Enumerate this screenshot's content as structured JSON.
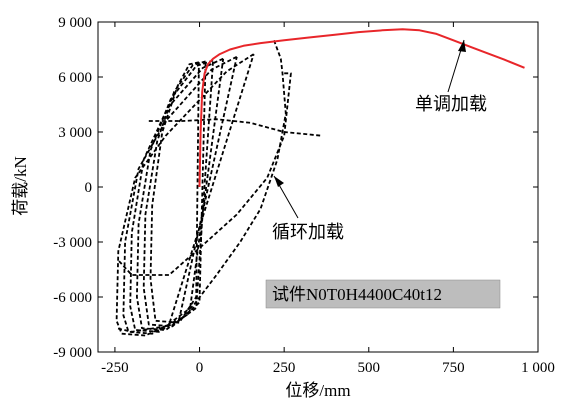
{
  "chart_data": {
    "type": "line",
    "xlabel": "位移/mm",
    "ylabel": "荷载/kN",
    "xlim": [
      -300,
      1000
    ],
    "ylim": [
      -9000,
      9000
    ],
    "xticks": [
      -250,
      0,
      250,
      500,
      750,
      1000
    ],
    "yticks": [
      -9000,
      -6000,
      -3000,
      0,
      3000,
      6000,
      9000
    ],
    "xtick_labels": [
      "-250",
      "0",
      "250",
      "500",
      "750",
      "1 000"
    ],
    "ytick_labels": [
      "-9 000",
      "-6 000",
      "-3 000",
      "0",
      "3 000",
      "6 000",
      "9 000"
    ],
    "grid": false,
    "annotations": {
      "monotonic": "单调加载",
      "cyclic": "循环加载"
    },
    "specimen_label": "试件N0T0H4400C40t12",
    "colors": {
      "monotonic": "#e8262a",
      "cyclic": "#000000",
      "label_box": "#bdbdbd"
    },
    "series": [
      {
        "name": "单调加载",
        "style": "solid",
        "x": [
          0,
          3,
          8,
          15,
          25,
          40,
          60,
          90,
          130,
          180,
          250,
          320,
          400,
          470,
          540,
          600,
          650,
          700,
          750,
          800,
          850,
          900,
          960
        ],
        "y": [
          0,
          3000,
          5200,
          6200,
          6700,
          7000,
          7250,
          7500,
          7700,
          7850,
          8000,
          8150,
          8300,
          8450,
          8550,
          8600,
          8550,
          8350,
          8000,
          7650,
          7300,
          6950,
          6500
        ]
      },
      {
        "name": "循环加载",
        "style": "dashed",
        "loops": [
          {
            "x": [
              -2,
              -30,
              -65,
              -110,
              -140,
              -145,
              -130,
              -60,
              -10,
              -2
            ],
            "y": [
              6800,
              6700,
              5500,
              3000,
              -1000,
              -5000,
              -7300,
              -7400,
              -6000,
              6800
            ]
          },
          {
            "x": [
              18,
              -20,
              -75,
              -125,
              -160,
              -165,
              -150,
              -80,
              0,
              18
            ],
            "y": [
              6850,
              6650,
              5200,
              2500,
              -1500,
              -5500,
              -7500,
              -7600,
              -6300,
              6850
            ]
          },
          {
            "x": [
              40,
              -10,
              -85,
              -145,
              -180,
              -185,
              -170,
              -100,
              -10,
              40
            ],
            "y": [
              6900,
              6600,
              4800,
              2000,
              -2000,
              -6000,
              -7700,
              -7800,
              -6600,
              6900
            ]
          },
          {
            "x": [
              70,
              10,
              -95,
              -165,
              -200,
              -205,
              -190,
              -120,
              -30,
              70
            ],
            "y": [
              7000,
              6500,
              4300,
              1500,
              -2500,
              -6500,
              -7800,
              -7900,
              -6900,
              7000
            ]
          },
          {
            "x": [
              110,
              35,
              -100,
              -180,
              -220,
              -225,
              -210,
              -140,
              -60,
              110
            ],
            "y": [
              7100,
              6400,
              3600,
              1000,
              -3000,
              -7000,
              -7900,
              -8000,
              -7200,
              7100
            ]
          },
          {
            "x": [
              160,
              80,
              -100,
              -190,
              -240,
              -245,
              -230,
              -160,
              -90,
              160
            ],
            "y": [
              7250,
              6300,
              2800,
              500,
              -3500,
              -7300,
              -8000,
              -8100,
              -7500,
              7250
            ]
          },
          {
            "x": [
              220,
              240,
              245,
              255,
              230,
              180,
              120,
              50,
              -20,
              -100,
              -200,
              -245
            ],
            "y": [
              8000,
              7000,
              6200,
              4000,
              1500,
              -1200,
              -3000,
              -4800,
              -6500,
              -7600,
              -7900,
              -7700
            ]
          },
          {
            "x": [
              250,
              270,
              250,
              200,
              110,
              20,
              -90,
              -200,
              -240
            ],
            "y": [
              6200,
              6200,
              2800,
              500,
              -1500,
              -3000,
              -4800,
              -4800,
              -4000
            ]
          },
          {
            "x": [
              -150,
              -50,
              50,
              150,
              250,
              360
            ],
            "y": [
              3600,
              3600,
              3700,
              3500,
              3000,
              2800
            ]
          }
        ]
      }
    ]
  }
}
